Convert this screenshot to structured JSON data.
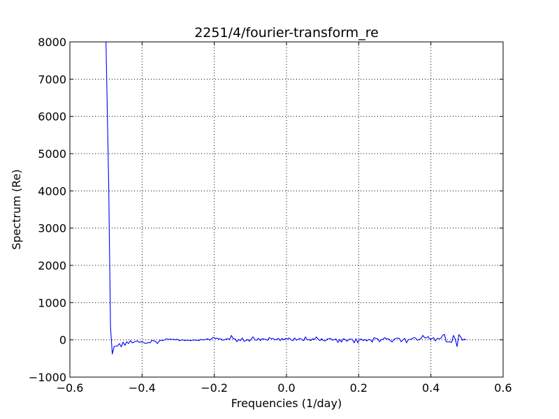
{
  "chart_data": {
    "type": "line",
    "title": "2251/4/fourier-transform_re",
    "xlabel": "Frequencies (1/day)",
    "ylabel": "Spectrum (Re)",
    "xlim": [
      -0.6,
      0.6
    ],
    "ylim": [
      -1000,
      8000
    ],
    "xticks": [
      -0.6,
      -0.4,
      -0.2,
      0.0,
      0.2,
      0.4,
      0.6
    ],
    "xtick_labels": [
      "−0.6",
      "−0.4",
      "−0.2",
      "0.0",
      "0.2",
      "0.4",
      "0.6"
    ],
    "yticks": [
      -1000,
      0,
      1000,
      2000,
      3000,
      4000,
      5000,
      6000,
      7000,
      8000
    ],
    "ytick_labels": [
      "−1000",
      "0",
      "1000",
      "2000",
      "3000",
      "4000",
      "5000",
      "6000",
      "7000",
      "8000"
    ],
    "grid": true,
    "grid_style": "dotted",
    "series": [
      {
        "color": "#0000ff",
        "x": [
          -0.5,
          -0.4925,
          -0.4875,
          -0.4825,
          -0.4775,
          -0.4725,
          -0.4675,
          -0.4625,
          -0.4575,
          -0.4525,
          -0.4475,
          -0.4425,
          -0.4375,
          -0.4325,
          -0.4275,
          -0.4225,
          -0.4175,
          -0.4125,
          -0.4075,
          -0.4025,
          -0.3975,
          -0.3925,
          -0.3875,
          -0.3825,
          -0.3775,
          -0.3725,
          -0.3675,
          -0.3625,
          -0.3575,
          -0.3525,
          -0.3475,
          -0.3425,
          -0.3375,
          -0.3325,
          -0.3275,
          -0.3225,
          -0.3175,
          -0.3125,
          -0.3075,
          -0.3025,
          -0.2975,
          -0.2925,
          -0.2875,
          -0.2825,
          -0.2775,
          -0.2725,
          -0.2675,
          -0.2625,
          -0.2575,
          -0.2525,
          -0.2475,
          -0.2425,
          -0.2375,
          -0.2325,
          -0.2275,
          -0.2225,
          -0.2175,
          -0.2125,
          -0.2075,
          -0.2025,
          -0.1975,
          -0.1925,
          -0.1875,
          -0.1825,
          -0.1775,
          -0.1725,
          -0.1675,
          -0.1625,
          -0.1575,
          -0.1525,
          -0.1475,
          -0.1425,
          -0.1375,
          -0.1325,
          -0.1275,
          -0.1225,
          -0.1175,
          -0.1125,
          -0.1075,
          -0.1025,
          -0.0975,
          -0.0925,
          -0.0875,
          -0.0825,
          -0.0775,
          -0.0725,
          -0.0675,
          -0.0625,
          -0.0575,
          -0.0525,
          -0.0475,
          -0.0425,
          -0.0375,
          -0.0325,
          -0.0275,
          -0.0225,
          -0.0175,
          -0.0125,
          -0.0075,
          -0.0025,
          0.0025,
          0.0075,
          0.0125,
          0.0175,
          0.0225,
          0.0275,
          0.0325,
          0.0375,
          0.0425,
          0.0475,
          0.0525,
          0.0575,
          0.0625,
          0.0675,
          0.0725,
          0.0775,
          0.0825,
          0.0875,
          0.0925,
          0.0975,
          0.1025,
          0.1075,
          0.1125,
          0.1175,
          0.1225,
          0.1275,
          0.1325,
          0.1375,
          0.1425,
          0.1475,
          0.1525,
          0.1575,
          0.1625,
          0.1675,
          0.1725,
          0.1775,
          0.1825,
          0.1875,
          0.1925,
          0.1975,
          0.2025,
          0.2075,
          0.2125,
          0.2175,
          0.2225,
          0.2275,
          0.2325,
          0.2375,
          0.2425,
          0.2475,
          0.2525,
          0.2575,
          0.2625,
          0.2675,
          0.2725,
          0.2775,
          0.2825,
          0.2875,
          0.2925,
          0.2975,
          0.3025,
          0.3075,
          0.3125,
          0.3175,
          0.3225,
          0.3275,
          0.3325,
          0.3375,
          0.3425,
          0.3475,
          0.3525,
          0.3575,
          0.3625,
          0.3675,
          0.3725,
          0.3775,
          0.3825,
          0.3875,
          0.3925,
          0.3975,
          0.4025,
          0.4075,
          0.4125,
          0.4175,
          0.4225,
          0.4275,
          0.4325,
          0.4375,
          0.4425,
          0.4475,
          0.4525,
          0.4575,
          0.4625,
          0.4675,
          0.4725,
          0.4775,
          0.4825,
          0.4875,
          0.4925,
          0.4975
        ],
        "y": [
          8000,
          4200,
          350,
          -380,
          -180,
          -170,
          -160,
          -100,
          -190,
          -60,
          -150,
          -50,
          -100,
          -20,
          -80,
          -60,
          -40,
          -30,
          -70,
          -50,
          -60,
          -90,
          -90,
          -70,
          -80,
          -10,
          -30,
          -40,
          -100,
          -30,
          -10,
          -20,
          0,
          30,
          10,
          20,
          10,
          15,
          0,
          20,
          -20,
          -10,
          5,
          -20,
          -10,
          -10,
          -20,
          -15,
          0,
          -10,
          -10,
          -20,
          10,
          5,
          0,
          20,
          25,
          -10,
          30,
          70,
          40,
          45,
          20,
          30,
          -10,
          0,
          20,
          30,
          10,
          120,
          30,
          30,
          -50,
          10,
          -20,
          50,
          -40,
          -20,
          10,
          -40,
          30,
          80,
          0,
          -10,
          40,
          -20,
          30,
          20,
          10,
          -10,
          60,
          30,
          40,
          0,
          10,
          40,
          -20,
          40,
          0,
          40,
          20,
          50,
          0,
          -20,
          50,
          -10,
          20,
          40,
          10,
          -20,
          80,
          0,
          10,
          -20,
          30,
          10,
          80,
          20,
          -20,
          30,
          -20,
          -30,
          20,
          30,
          40,
          -10,
          10,
          20,
          -70,
          10,
          -60,
          30,
          10,
          -40,
          10,
          20,
          10,
          -80,
          30,
          -80,
          10,
          20,
          -20,
          10,
          -30,
          10,
          0,
          -60,
          60,
          40,
          30,
          -50,
          0,
          20,
          60,
          20,
          30,
          -20,
          -60,
          10,
          40,
          50,
          40,
          -50,
          0,
          40,
          -80,
          10,
          10,
          30,
          60,
          50,
          -10,
          10,
          30,
          120,
          60,
          50,
          90,
          10,
          30,
          60,
          -30,
          40,
          30,
          40,
          120,
          150,
          -50,
          -60,
          -50,
          -70,
          120,
          20,
          -180,
          140,
          80,
          -10,
          20,
          0
        ]
      }
    ]
  }
}
